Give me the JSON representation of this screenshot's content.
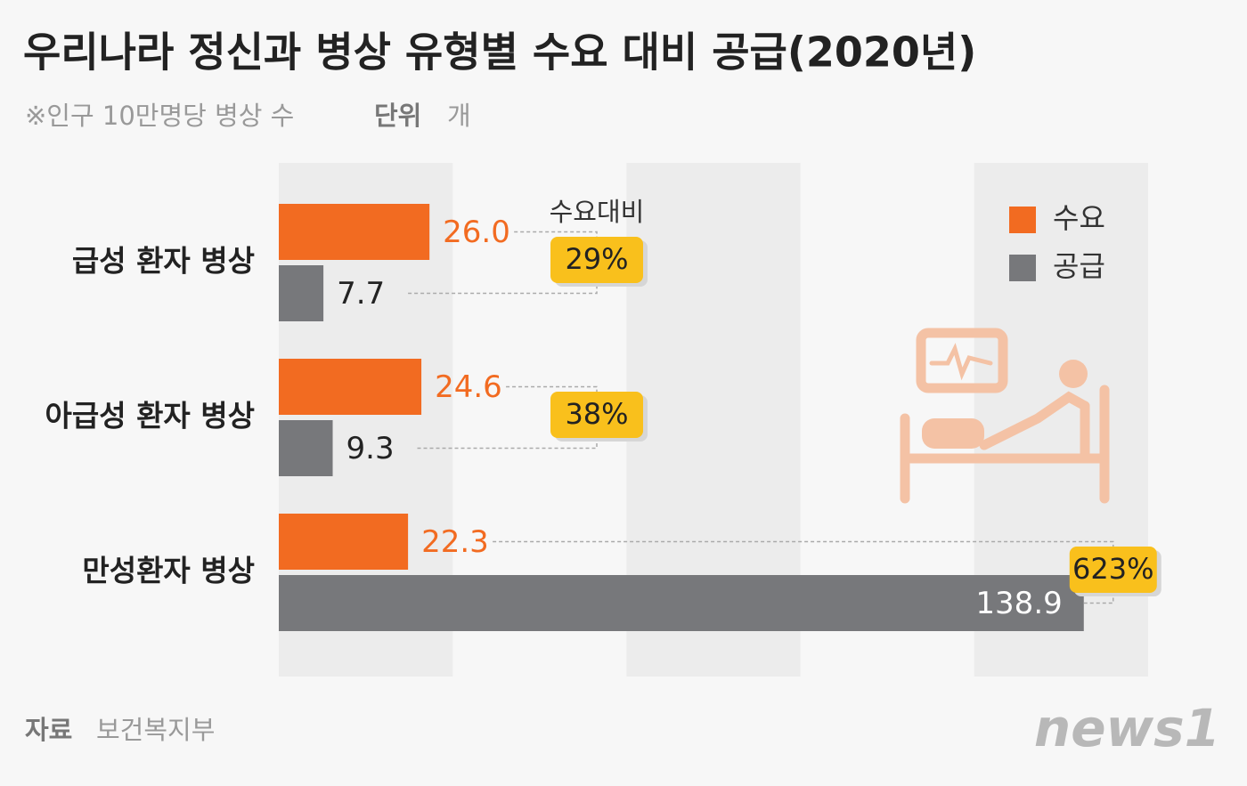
{
  "chart_data": {
    "type": "bar",
    "orientation": "horizontal",
    "title": "우리나라 정신과 병상 유형별 수요 대비 공급(2020년)",
    "subtitle": "※인구 10만명당 병상 수",
    "unit_label": "단위",
    "unit": "개",
    "categories": [
      "급성 환자 병상",
      "아급성 환자 병상",
      "만성환자 병상"
    ],
    "series": [
      {
        "name": "수요",
        "color": "#f26b21",
        "values": [
          26.0,
          24.6,
          22.3
        ],
        "value_labels": [
          "26.0",
          "24.6",
          "22.3"
        ]
      },
      {
        "name": "공급",
        "color": "#77787b",
        "values": [
          7.7,
          9.3,
          138.9
        ]
      }
    ],
    "ratio_header": "수요대비",
    "ratio_labels": [
      "29%",
      "38%",
      "623%"
    ],
    "xlim": [
      0,
      150
    ],
    "source_label": "자료",
    "source": "보건복지부",
    "logo": "news1"
  }
}
